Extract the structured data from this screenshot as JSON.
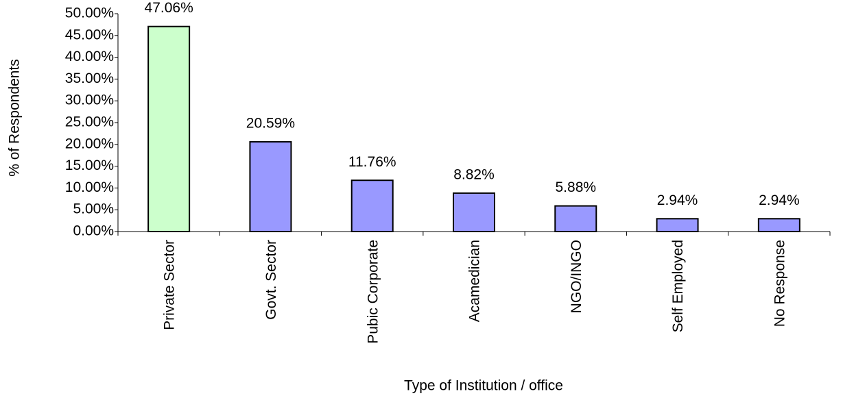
{
  "chart_data": {
    "type": "bar",
    "x_label": "Type of Institution / office",
    "y_label": "% of Respondents",
    "categories": [
      "Private Sector",
      "Govt. Sector",
      "Pubic Corporate",
      "Acamedician",
      "NGO/INGO",
      "Self Employed",
      "No Response"
    ],
    "values": [
      47.06,
      20.59,
      11.76,
      8.82,
      5.88,
      2.94,
      2.94
    ],
    "value_labels": [
      "47.06%",
      "20.59%",
      "11.76%",
      "8.82%",
      "5.88%",
      "2.94%",
      "2.94%"
    ],
    "colors": [
      "#ccffcc",
      "#9999ff",
      "#9999ff",
      "#9999ff",
      "#9999ff",
      "#9999ff",
      "#9999ff"
    ],
    "ylim": [
      0,
      50
    ],
    "yticks": [
      {
        "value": 0,
        "label": "0.00%"
      },
      {
        "value": 5,
        "label": "5.00%"
      },
      {
        "value": 10,
        "label": "10.00%"
      },
      {
        "value": 15,
        "label": "15.00%"
      },
      {
        "value": 20,
        "label": "20.00%"
      },
      {
        "value": 25,
        "label": "25.00%"
      },
      {
        "value": 30,
        "label": "30.00%"
      },
      {
        "value": 35,
        "label": "35.00%"
      },
      {
        "value": 40,
        "label": "40.00%"
      },
      {
        "value": 45,
        "label": "45.00%"
      },
      {
        "value": 50,
        "label": "50.00%"
      }
    ],
    "grid": false
  }
}
